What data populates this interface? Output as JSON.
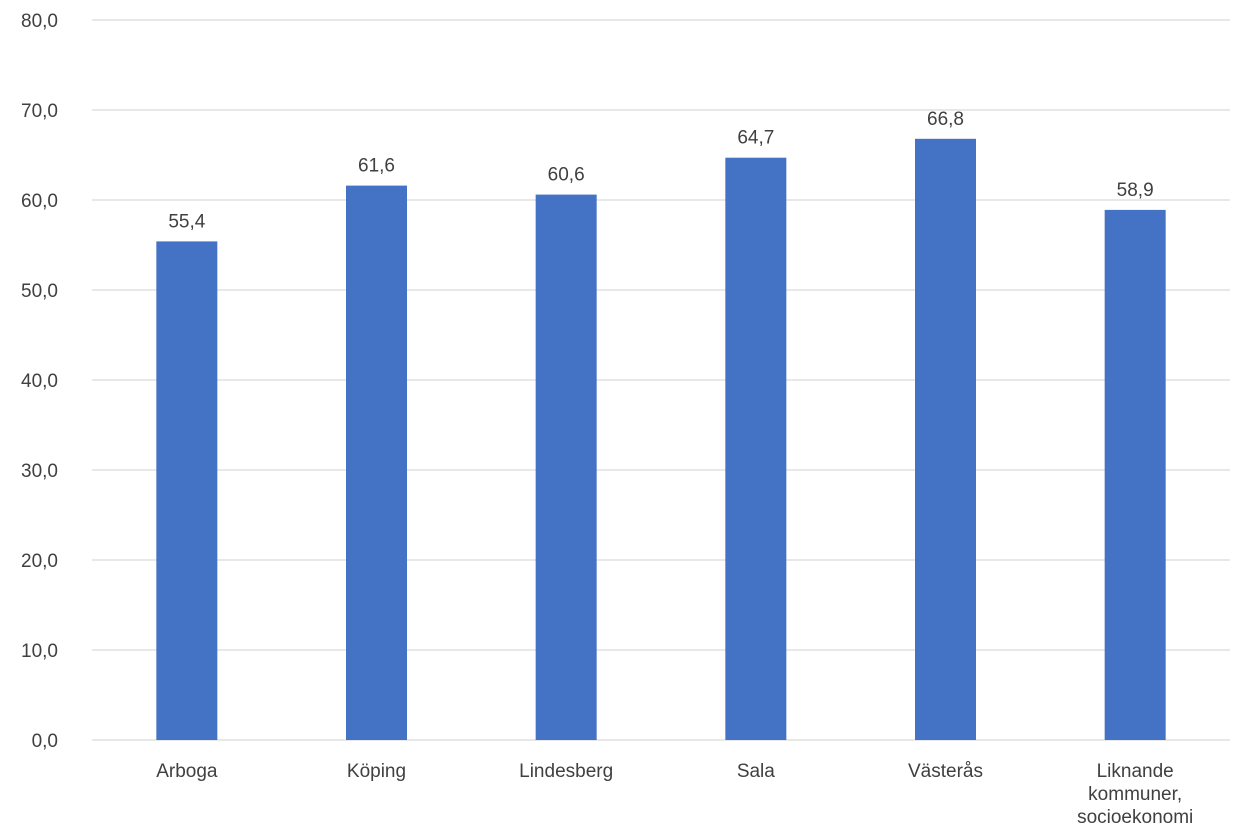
{
  "chart_data": {
    "type": "bar",
    "categories": [
      "Arboga",
      "Köping",
      "Lindesberg",
      "Sala",
      "Västerås",
      "Liknande kommuner, socioekonomi"
    ],
    "category_lines": [
      [
        "Arboga"
      ],
      [
        "Köping"
      ],
      [
        "Lindesberg"
      ],
      [
        "Sala"
      ],
      [
        "Västerås"
      ],
      [
        "Liknande",
        "kommuner,",
        "socioekonomi"
      ]
    ],
    "values": [
      55.4,
      61.6,
      60.6,
      64.7,
      66.8,
      58.9
    ],
    "value_labels": [
      "55,4",
      "61,6",
      "60,6",
      "64,7",
      "66,8",
      "58,9"
    ],
    "yticks": [
      "0,0",
      "10,0",
      "20,0",
      "30,0",
      "40,0",
      "50,0",
      "60,0",
      "70,0",
      "80,0"
    ],
    "ylim": [
      0,
      80
    ],
    "title": "",
    "xlabel": "",
    "ylabel": "",
    "grid": true,
    "legend": "none",
    "bar_color": "#4472c4",
    "grid_color": "#d9d9d9",
    "text_color": "#404040"
  }
}
